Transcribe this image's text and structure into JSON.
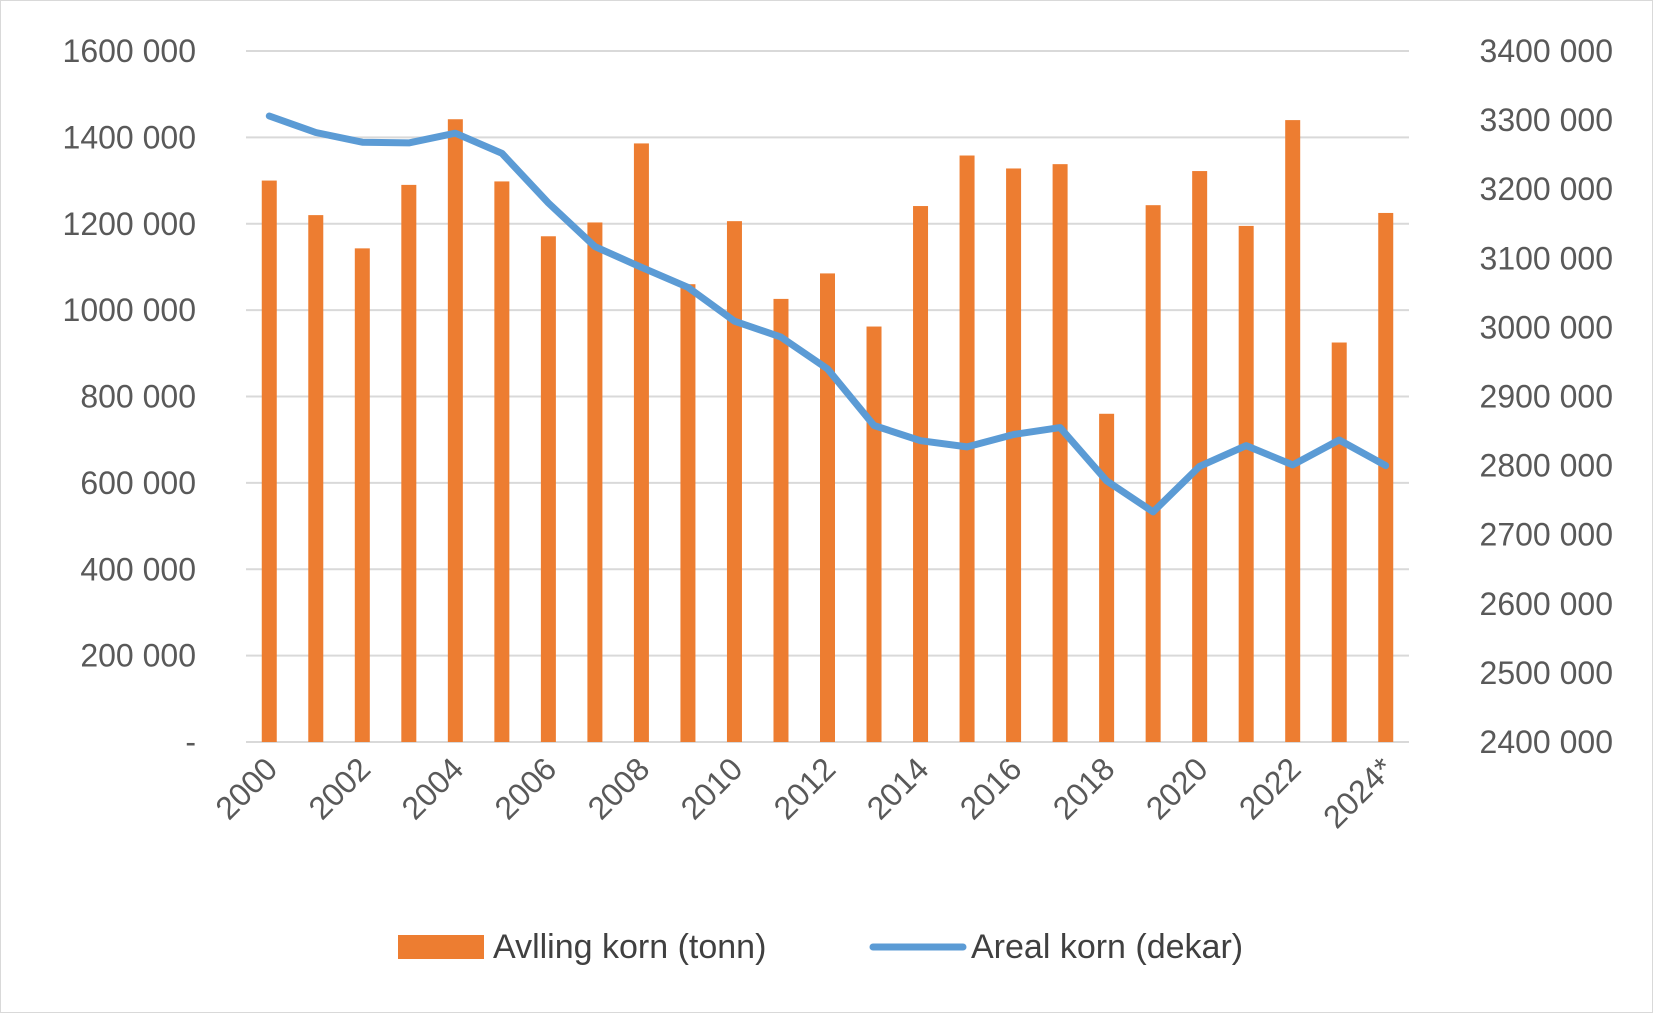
{
  "chart_data": {
    "type": "bar",
    "categories": [
      "2000",
      "2001",
      "2002",
      "2003",
      "2004",
      "2005",
      "2006",
      "2007",
      "2008",
      "2009",
      "2010",
      "2011",
      "2012",
      "2013",
      "2014",
      "2015",
      "2016",
      "2017",
      "2018",
      "2019",
      "2020",
      "2021",
      "2022",
      "2023",
      "2024*"
    ],
    "x_tick_labels": [
      "2000",
      "2002",
      "2004",
      "2006",
      "2008",
      "2010",
      "2012",
      "2014",
      "2016",
      "2018",
      "2020",
      "2022",
      "2024*"
    ],
    "series": [
      {
        "name": "Avlling korn (tonn)",
        "type": "bar",
        "axis": "left",
        "color": "#ED7D31",
        "values": [
          1300000,
          1220000,
          1143000,
          1290000,
          1442000,
          1298000,
          1171000,
          1203000,
          1386000,
          1060000,
          1206000,
          1026000,
          1085000,
          962000,
          1241000,
          1358000,
          1328000,
          1338000,
          760000,
          1243000,
          1322000,
          1195000,
          1440000,
          925000,
          1225000
        ]
      },
      {
        "name": "Areal korn (dekar)",
        "type": "line",
        "axis": "right",
        "color": "#5B9BD5",
        "values": [
          3306000,
          3282000,
          3268000,
          3267000,
          3281000,
          3252000,
          3180000,
          3117000,
          3087000,
          3058000,
          3009000,
          2986000,
          2940000,
          2858000,
          2836000,
          2827000,
          2845000,
          2855000,
          2778000,
          2733000,
          2799000,
          2829000,
          2801000,
          2837000,
          2800000
        ]
      }
    ],
    "y_left": {
      "range": [
        0,
        1600000
      ],
      "tick_labels": [
        "-",
        "200 000",
        "400 000",
        "600 000",
        "800 000",
        "1000 000",
        "1200 000",
        "1400 000",
        "1600 000"
      ]
    },
    "y_right": {
      "range": [
        2400000,
        3400000
      ],
      "tick_labels": [
        "2400 000",
        "2500 000",
        "2600 000",
        "2700 000",
        "2800 000",
        "2900 000",
        "3000 000",
        "3100 000",
        "3200 000",
        "3300 000",
        "3400 000"
      ]
    },
    "grid": "horizontal",
    "legend_position": "bottom"
  },
  "colors": {
    "bar": "#ED7D31",
    "line": "#5B9BD5",
    "grid": "#d9d9d9",
    "text": "#595959"
  }
}
